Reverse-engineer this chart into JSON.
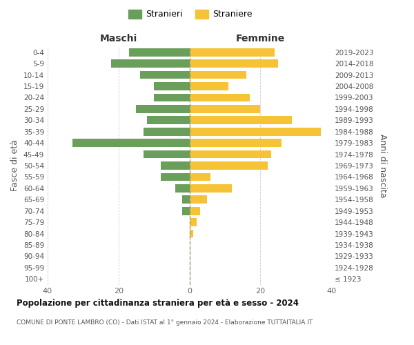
{
  "age_groups": [
    "100+",
    "95-99",
    "90-94",
    "85-89",
    "80-84",
    "75-79",
    "70-74",
    "65-69",
    "60-64",
    "55-59",
    "50-54",
    "45-49",
    "40-44",
    "35-39",
    "30-34",
    "25-29",
    "20-24",
    "15-19",
    "10-14",
    "5-9",
    "0-4"
  ],
  "birth_years": [
    "≤ 1923",
    "1924-1928",
    "1929-1933",
    "1934-1938",
    "1939-1943",
    "1944-1948",
    "1949-1953",
    "1954-1958",
    "1959-1963",
    "1964-1968",
    "1969-1973",
    "1974-1978",
    "1979-1983",
    "1984-1988",
    "1989-1993",
    "1994-1998",
    "1999-2003",
    "2004-2008",
    "2009-2013",
    "2014-2018",
    "2019-2023"
  ],
  "maschi": [
    0,
    0,
    0,
    0,
    0,
    0,
    2,
    2,
    4,
    8,
    8,
    13,
    33,
    13,
    12,
    15,
    10,
    10,
    14,
    22,
    17
  ],
  "femmine": [
    0,
    0,
    0,
    0,
    1,
    2,
    3,
    5,
    12,
    6,
    22,
    23,
    26,
    37,
    29,
    20,
    17,
    11,
    16,
    25,
    24
  ],
  "maschi_color": "#6a9e5b",
  "femmine_color": "#f5c335",
  "background_color": "#ffffff",
  "grid_color": "#cccccc",
  "title": "Popolazione per cittadinanza straniera per età e sesso - 2024",
  "subtitle": "COMUNE DI PONTE LAMBRO (CO) - Dati ISTAT al 1° gennaio 2024 - Elaborazione TUTTAITALIA.IT",
  "label_maschi": "Maschi",
  "label_femmine": "Femmine",
  "ylabel_left": "Fasce di età",
  "ylabel_right": "Anni di nascita",
  "legend_stranieri": "Stranieri",
  "legend_straniere": "Straniere",
  "xlim": 40
}
